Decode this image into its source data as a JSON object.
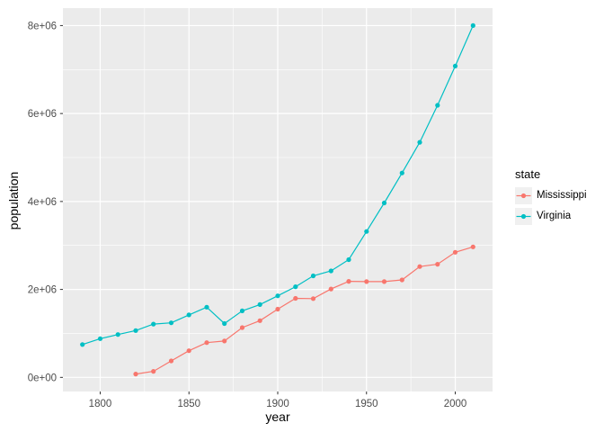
{
  "colors": {
    "panel_background": "#EBEBEB",
    "grid": "#FFFFFF",
    "axis_text": "#4D4D4D",
    "tick_mark": "#333333",
    "legend_key_background": "#F0F0F0",
    "mississippi": "#F8766D",
    "virginia": "#00BFC4"
  },
  "chart_data": {
    "type": "line",
    "xlabel": "year",
    "ylabel": "population",
    "grid": true,
    "xlim": [
      1779,
      2021
    ],
    "ylim": [
      -320831,
      8397303
    ],
    "x_ticks": [
      {
        "value": 1800,
        "label": "1800"
      },
      {
        "value": 1850,
        "label": "1850"
      },
      {
        "value": 1900,
        "label": "1900"
      },
      {
        "value": 1950,
        "label": "1950"
      },
      {
        "value": 2000,
        "label": "2000"
      }
    ],
    "y_ticks": [
      {
        "value": 0,
        "label": "0e+00"
      },
      {
        "value": 2000000,
        "label": "2e+06"
      },
      {
        "value": 4000000,
        "label": "4e+06"
      },
      {
        "value": 6000000,
        "label": "6e+06"
      },
      {
        "value": 8000000,
        "label": "8e+06"
      }
    ],
    "x_minor_breaks": [
      1825,
      1875,
      1925,
      1975
    ],
    "y_minor_breaks": [
      1000000,
      3000000,
      5000000,
      7000000
    ],
    "legend": {
      "title": "state",
      "position": "right",
      "entries": [
        "Mississippi",
        "Virginia"
      ]
    },
    "series": [
      {
        "name": "Mississippi",
        "color": "#F8766D",
        "x": [
          1820,
          1830,
          1840,
          1850,
          1860,
          1870,
          1880,
          1890,
          1900,
          1910,
          1920,
          1930,
          1940,
          1950,
          1960,
          1970,
          1980,
          1990,
          2000,
          2010
        ],
        "y": [
          75448,
          136621,
          375651,
          606526,
          791305,
          827922,
          1131597,
          1289600,
          1551270,
          1797114,
          1790618,
          2009821,
          2183796,
          2178914,
          2178141,
          2216912,
          2520638,
          2573216,
          2844658,
          2967297
        ]
      },
      {
        "name": "Virginia",
        "color": "#00BFC4",
        "x": [
          1790,
          1800,
          1810,
          1820,
          1830,
          1840,
          1850,
          1860,
          1870,
          1880,
          1890,
          1900,
          1910,
          1920,
          1930,
          1940,
          1950,
          1960,
          1970,
          1980,
          1990,
          2000,
          2010
        ],
        "y": [
          747610,
          880200,
          974600,
          1065366,
          1211405,
          1239797,
          1421661,
          1596318,
          1225163,
          1512565,
          1655980,
          1854184,
          2061612,
          2309187,
          2421851,
          2677773,
          3318680,
          3966949,
          4648494,
          5346818,
          6187358,
          7078515,
          8001024
        ]
      }
    ]
  }
}
